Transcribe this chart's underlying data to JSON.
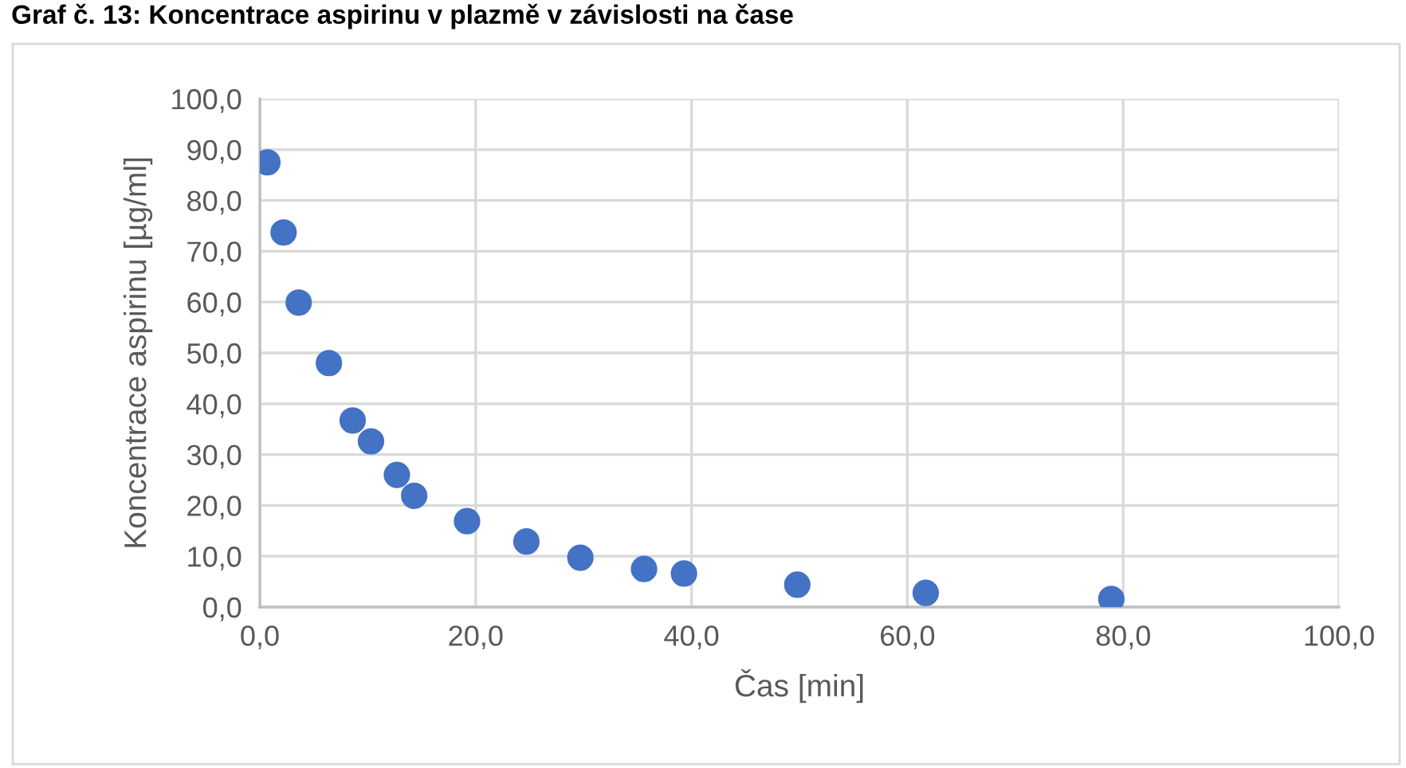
{
  "chart_data": {
    "type": "scatter",
    "title": "Graf č. 13: Koncentrace aspirinu v plazmě v závislosti na čase",
    "xlabel": "Čas [min]",
    "ylabel": "Koncentrace aspirinu [µg/ml]",
    "x": [
      0.7,
      2.2,
      3.6,
      6.4,
      8.6,
      10.3,
      12.7,
      14.3,
      19.2,
      24.7,
      29.7,
      35.6,
      39.3,
      49.8,
      61.7,
      78.9
    ],
    "series": [
      {
        "color": "#4472c4",
        "values": [
          87.5,
          73.7,
          59.9,
          48.0,
          36.7,
          32.6,
          26.0,
          21.9,
          16.9,
          12.9,
          9.7,
          7.5,
          6.6,
          4.4,
          2.8,
          1.6
        ]
      }
    ],
    "marker": "circle",
    "grid": true,
    "xlim": [
      0,
      100
    ],
    "ylim": [
      0,
      100
    ],
    "xticks": [
      {
        "value": 0,
        "label": "0,0"
      },
      {
        "value": 20,
        "label": "20,0"
      },
      {
        "value": 40,
        "label": "40,0"
      },
      {
        "value": 60,
        "label": "60,0"
      },
      {
        "value": 80,
        "label": "80,0"
      },
      {
        "value": 100,
        "label": "100,0"
      }
    ],
    "yticks": [
      {
        "value": 0,
        "label": "0,0"
      },
      {
        "value": 10,
        "label": "10,0"
      },
      {
        "value": 20,
        "label": "20,0"
      },
      {
        "value": 30,
        "label": "30,0"
      },
      {
        "value": 40,
        "label": "40,0"
      },
      {
        "value": 50,
        "label": "50,0"
      },
      {
        "value": 60,
        "label": "60,0"
      },
      {
        "value": 70,
        "label": "70,0"
      },
      {
        "value": 80,
        "label": "80,0"
      },
      {
        "value": 90,
        "label": "90,0"
      },
      {
        "value": 100,
        "label": "100,0"
      }
    ]
  }
}
